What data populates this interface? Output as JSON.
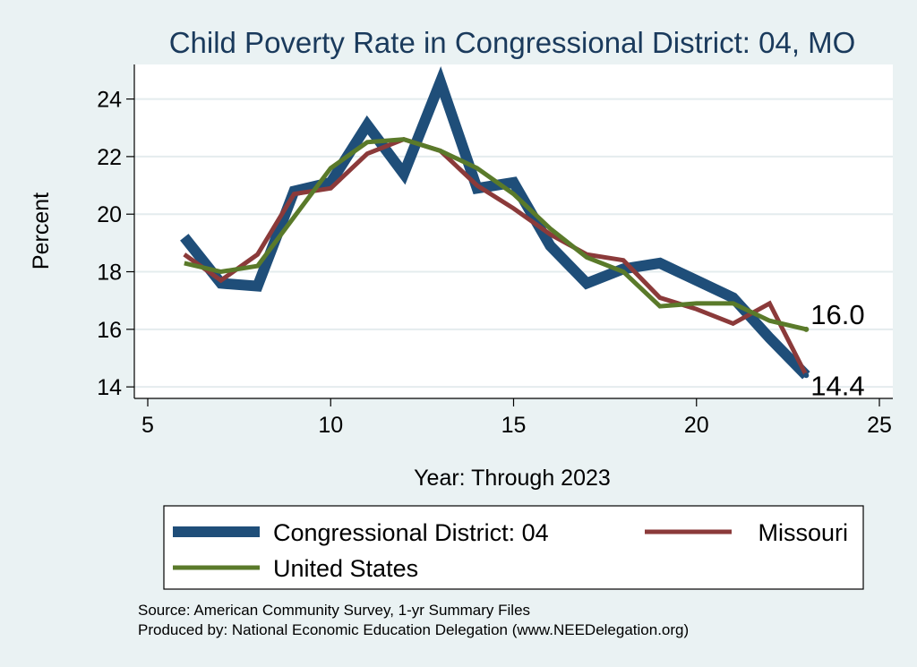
{
  "chart_data": {
    "type": "line",
    "title": "Child Poverty Rate in Congressional District:  04, MO",
    "xlabel": "Year: Through 2023",
    "ylabel": "Percent",
    "xlim": [
      5,
      25
    ],
    "ylim": [
      13.6,
      25.2
    ],
    "x_ticks": [
      5,
      10,
      15,
      20,
      25
    ],
    "y_ticks": [
      14,
      16,
      18,
      20,
      22,
      24
    ],
    "grid": true,
    "legend_position": "bottom",
    "x": [
      6,
      7,
      8,
      9,
      10,
      11,
      12,
      13,
      14,
      15,
      16,
      17,
      18,
      19,
      20,
      21,
      22,
      23
    ],
    "series": [
      {
        "name": "Congressional District:  04",
        "color": "#1f4e79",
        "values": [
          19.2,
          17.6,
          17.5,
          20.8,
          21.1,
          23.1,
          21.4,
          24.6,
          20.9,
          21.1,
          18.9,
          17.6,
          18.1,
          18.3,
          17.7,
          17.1,
          15.7,
          14.4
        ]
      },
      {
        "name": "Missouri",
        "color": "#8b3a3a",
        "values": [
          18.6,
          17.7,
          18.6,
          20.7,
          20.9,
          22.1,
          22.6,
          22.2,
          21.0,
          20.2,
          19.3,
          18.6,
          18.4,
          17.1,
          16.7,
          16.2,
          16.9,
          14.4
        ]
      },
      {
        "name": "United States",
        "color": "#5a7a2a",
        "values": [
          18.3,
          18.0,
          18.2,
          19.9,
          21.6,
          22.5,
          22.6,
          22.2,
          21.6,
          20.7,
          19.5,
          18.5,
          18.0,
          16.8,
          16.9,
          16.9,
          16.3,
          16.0
        ]
      }
    ],
    "end_labels": [
      {
        "text": "16.0",
        "series": "United States"
      },
      {
        "text": "14.4",
        "series": "Congressional District:  04"
      }
    ]
  },
  "source_line": "Source: American Community Survey, 1-yr Summary Files",
  "produced_line": "Produced by: National Economic Education Delegation (www.NEEDelegation.org)"
}
